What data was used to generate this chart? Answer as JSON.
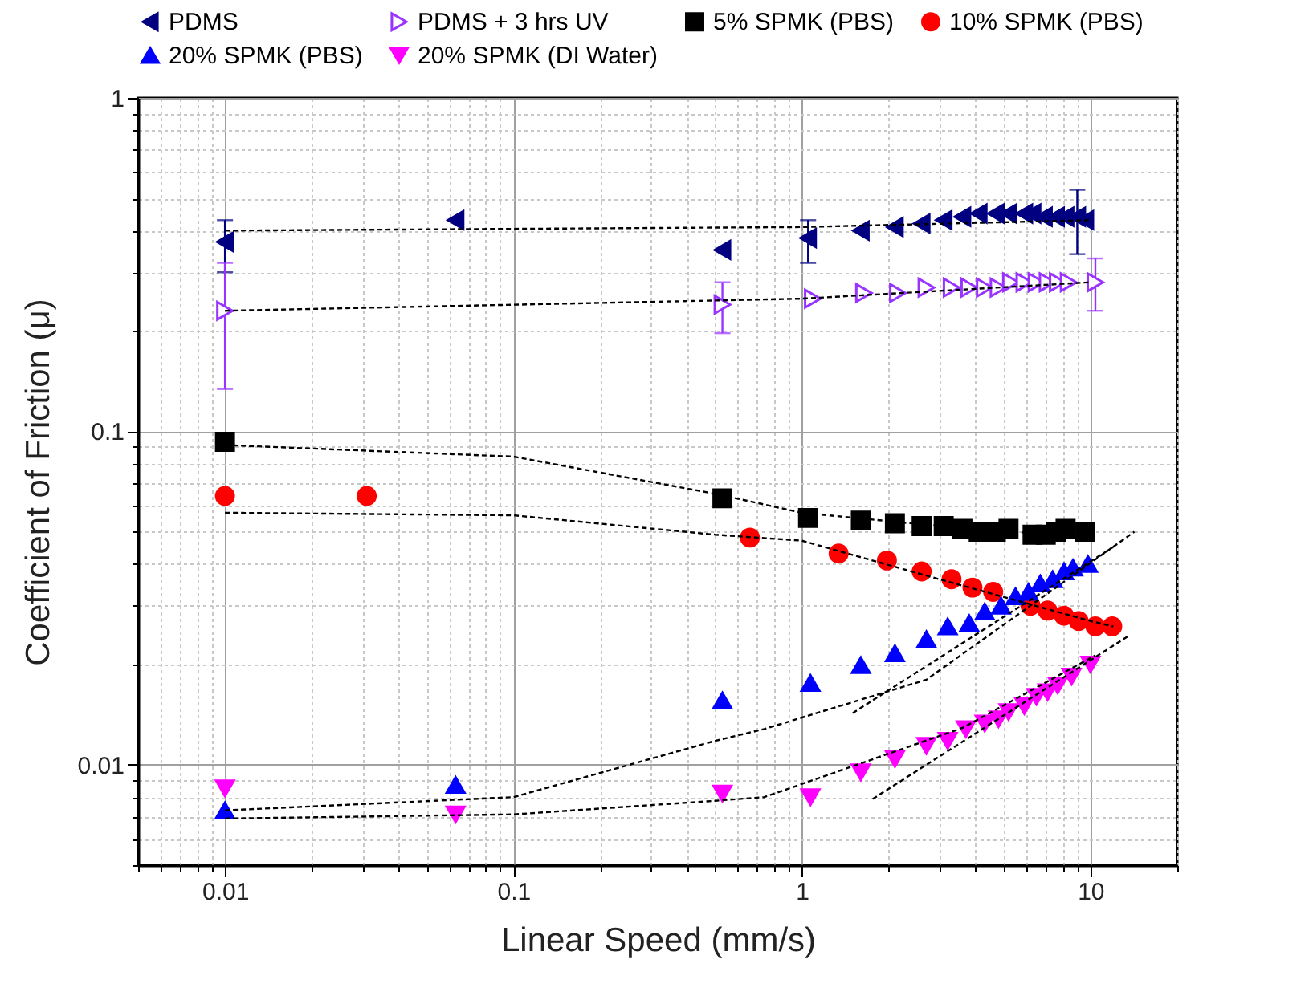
{
  "chart_data": {
    "type": "scatter",
    "xlabel": "Linear Speed (mm/s)",
    "ylabel": "Coefficient of Friction (μ)",
    "log": "xy",
    "grid": true,
    "legend": "top",
    "xlim": [
      0.005,
      20
    ],
    "ylim": [
      0.005,
      1
    ],
    "xticks": [
      {
        "value": 0.005,
        "label": null
      },
      {
        "value": 0.006,
        "label": null
      },
      {
        "value": 0.007,
        "label": null
      },
      {
        "value": 0.008,
        "label": null
      },
      {
        "value": 0.009,
        "label": null
      },
      0.01,
      {
        "value": 0.02,
        "label": null
      },
      {
        "value": 0.03,
        "label": null
      },
      {
        "value": 0.04,
        "label": null
      },
      {
        "value": 0.05,
        "label": null
      },
      {
        "value": 0.06,
        "label": null
      },
      {
        "value": 0.07,
        "label": null
      },
      {
        "value": 0.08,
        "label": null
      },
      {
        "value": 0.09,
        "label": null
      },
      0.1,
      {
        "value": 0.2,
        "label": null
      },
      {
        "value": 0.3,
        "label": null
      },
      {
        "value": 0.4,
        "label": null
      },
      {
        "value": 0.5,
        "label": null
      },
      {
        "value": 0.6,
        "label": null
      },
      {
        "value": 0.7,
        "label": null
      },
      {
        "value": 0.8,
        "label": null
      },
      {
        "value": 0.9,
        "label": null
      },
      1,
      {
        "value": 2,
        "label": null
      },
      {
        "value": 3,
        "label": null
      },
      {
        "value": 4,
        "label": null
      },
      {
        "value": 5,
        "label": null
      },
      {
        "value": 6,
        "label": null
      },
      {
        "value": 7,
        "label": null
      },
      {
        "value": 8,
        "label": null
      },
      {
        "value": 9,
        "label": null
      },
      10,
      {
        "value": 20,
        "label": null
      }
    ],
    "yticks": [
      {
        "value": 0.005,
        "label": null
      },
      {
        "value": 0.006,
        "label": null
      },
      {
        "value": 0.007,
        "label": null
      },
      {
        "value": 0.008,
        "label": null
      },
      {
        "value": 0.009,
        "label": null
      },
      0.01,
      {
        "value": 0.02,
        "label": null
      },
      {
        "value": 0.03,
        "label": null
      },
      {
        "value": 0.04,
        "label": null
      },
      {
        "value": 0.05,
        "label": null
      },
      {
        "value": 0.06,
        "label": null
      },
      {
        "value": 0.07,
        "label": null
      },
      {
        "value": 0.08,
        "label": null
      },
      {
        "value": 0.09,
        "label": null
      },
      0.1,
      {
        "value": 0.2,
        "label": null
      },
      {
        "value": 0.3,
        "label": null
      },
      {
        "value": 0.4,
        "label": null
      },
      {
        "value": 0.5,
        "label": null
      },
      {
        "value": 0.6,
        "label": null
      },
      {
        "value": 0.7,
        "label": null
      },
      {
        "value": 0.8,
        "label": null
      },
      {
        "value": 0.9,
        "label": null
      },
      1
    ],
    "series": [
      {
        "name": "PDMS",
        "color": "#000080",
        "marker": "triangle-left",
        "x": [
          0.01,
          0.063,
          0.53,
          1.05,
          1.6,
          2.1,
          2.6,
          3.1,
          3.6,
          4.1,
          4.7,
          5.2,
          5.9,
          6.3,
          6.9,
          7.6,
          8.2,
          9.0,
          9.6
        ],
        "values": [
          0.37,
          0.43,
          0.35,
          0.38,
          0.4,
          0.41,
          0.42,
          0.43,
          0.44,
          0.45,
          0.45,
          0.45,
          0.45,
          0.45,
          0.44,
          0.44,
          0.44,
          0.44,
          0.43
        ],
        "errors": [
          [
            0.3,
            0.43
          ],
          null,
          null,
          [
            0.32,
            0.43
          ],
          null,
          null,
          null,
          null,
          null,
          null,
          null,
          null,
          null,
          null,
          null,
          null,
          null,
          [
            0.34,
            0.53
          ],
          null
        ]
      },
      {
        "name": "PDMS + 3 hrs UV",
        "color": "#9933ff",
        "marker": "triangle-right-open",
        "x": [
          0.01,
          0.53,
          1.09,
          1.64,
          2.15,
          2.7,
          3.3,
          3.8,
          4.3,
          4.8,
          5.3,
          5.9,
          6.5,
          7.1,
          7.7,
          8.4,
          10.4
        ],
        "values": [
          0.23,
          0.24,
          0.25,
          0.26,
          0.26,
          0.27,
          0.27,
          0.27,
          0.27,
          0.27,
          0.28,
          0.28,
          0.28,
          0.28,
          0.28,
          0.28,
          0.28
        ],
        "errors": [
          [
            0.134,
            0.32
          ],
          [
            0.197,
            0.28
          ],
          null,
          null,
          null,
          null,
          null,
          null,
          null,
          null,
          null,
          null,
          null,
          null,
          null,
          null,
          [
            0.23,
            0.33
          ]
        ]
      },
      {
        "name": "5% SPMK (PBS)",
        "color": "#000000",
        "marker": "square",
        "x": [
          0.01,
          0.53,
          1.05,
          1.6,
          2.1,
          2.6,
          3.1,
          3.6,
          4.1,
          4.7,
          5.2,
          6.3,
          7.0,
          7.6,
          8.2,
          9.6
        ],
        "values": [
          0.093,
          0.063,
          0.055,
          0.054,
          0.053,
          0.052,
          0.052,
          0.051,
          0.05,
          0.05,
          0.051,
          0.049,
          0.049,
          0.05,
          0.051,
          0.05
        ]
      },
      {
        "name": "10% SPMK (PBS)",
        "color": "#ff0000",
        "marker": "circle",
        "x": [
          0.01,
          0.031,
          0.66,
          1.34,
          1.97,
          2.6,
          3.3,
          3.9,
          4.6,
          6.2,
          7.1,
          8.1,
          9.1,
          10.4,
          11.9
        ],
        "values": [
          0.064,
          0.064,
          0.048,
          0.043,
          0.041,
          0.038,
          0.036,
          0.034,
          0.033,
          0.03,
          0.029,
          0.028,
          0.027,
          0.026,
          0.026
        ]
      },
      {
        "name": "20% SPMK (PBS)",
        "color": "#0000ff",
        "marker": "triangle-up",
        "x": [
          0.01,
          0.063,
          0.53,
          1.07,
          1.6,
          2.1,
          2.7,
          3.2,
          3.8,
          4.3,
          4.9,
          5.5,
          6.1,
          6.7,
          7.4,
          8.1,
          8.7,
          9.8
        ],
        "values": [
          0.0073,
          0.0087,
          0.0156,
          0.0176,
          0.0199,
          0.0216,
          0.0238,
          0.026,
          0.0266,
          0.0288,
          0.03,
          0.032,
          0.033,
          0.035,
          0.036,
          0.038,
          0.039,
          0.04
        ]
      },
      {
        "name": "20% SPMK (DI Water)",
        "color": "#ff00ff",
        "marker": "triangle-down",
        "x": [
          0.01,
          0.063,
          0.53,
          1.07,
          1.6,
          2.1,
          2.7,
          3.2,
          3.7,
          4.3,
          4.8,
          5.2,
          5.9,
          6.5,
          7.1,
          7.7,
          8.6,
          10.0
        ],
        "values": [
          0.0085,
          0.0071,
          0.0082,
          0.008,
          0.0095,
          0.0104,
          0.0114,
          0.0118,
          0.0128,
          0.0133,
          0.0137,
          0.0144,
          0.015,
          0.016,
          0.0165,
          0.0173,
          0.0184,
          0.02
        ]
      },
      {
        "type": "line",
        "color": "#000000",
        "line_style": "dashed",
        "x": [
          0.01,
          1,
          10
        ],
        "values": [
          0.4,
          0.41,
          0.43
        ]
      },
      {
        "type": "line",
        "color": "#000000",
        "line_style": "dashed",
        "x": [
          0.01,
          1,
          10
        ],
        "values": [
          0.23,
          0.25,
          0.28
        ]
      },
      {
        "type": "line",
        "color": "#000000",
        "line_style": "dashed",
        "x": [
          0.01,
          0.1,
          0.5,
          1,
          3,
          10
        ],
        "values": [
          0.091,
          0.084,
          0.065,
          0.057,
          0.052,
          0.048
        ]
      },
      {
        "type": "line",
        "color": "#000000",
        "line_style": "dashed",
        "x": [
          0.01,
          0.1,
          0.5,
          1,
          3,
          10,
          12
        ],
        "values": [
          0.057,
          0.056,
          0.049,
          0.047,
          0.036,
          0.027,
          0.026
        ]
      },
      {
        "type": "line",
        "color": "#000000",
        "line_style": "dashed",
        "x": [
          0.01,
          0.1,
          0.5,
          0.74,
          2.7,
          14.2
        ],
        "values": [
          0.0073,
          0.008,
          0.0118,
          0.0128,
          0.018,
          0.05
        ]
      },
      {
        "type": "line",
        "color": "#000000",
        "line_style": "dashed",
        "x": [
          1.5,
          12
        ],
        "values": [
          0.0143,
          0.045
        ]
      },
      {
        "type": "line",
        "color": "#000000",
        "line_style": "dashed",
        "x": [
          0.01,
          0.1,
          0.5,
          0.74,
          3.6,
          10.4
        ],
        "values": [
          0.0069,
          0.0071,
          0.0078,
          0.008,
          0.0129,
          0.0213
        ]
      },
      {
        "type": "line",
        "color": "#000000",
        "line_style": "dashed",
        "x": [
          1.76,
          13.6
        ],
        "values": [
          0.0079,
          0.0244
        ]
      }
    ]
  }
}
